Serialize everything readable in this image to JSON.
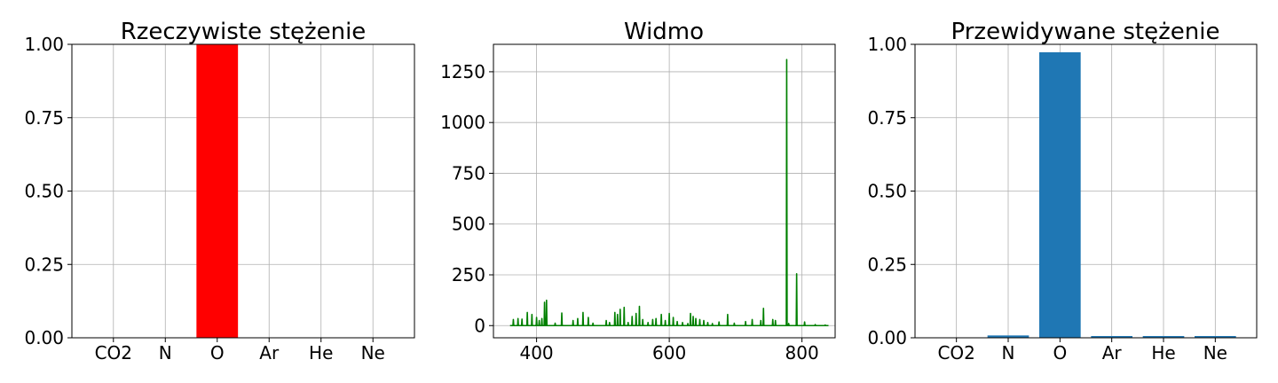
{
  "chart_data": [
    {
      "type": "bar",
      "title": "Rzeczywiste stężenie",
      "categories": [
        "CO2",
        "N",
        "O",
        "Ar",
        "He",
        "Ne"
      ],
      "values": [
        0,
        0,
        1.0,
        0,
        0,
        0
      ],
      "color": "#ff0000",
      "ylim": [
        0,
        1.0
      ],
      "yticks": [
        "0.00",
        "0.25",
        "0.50",
        "0.75",
        "1.00"
      ],
      "grid": true
    },
    {
      "type": "line",
      "title": "Widmo",
      "color": "#008000",
      "xlim": [
        335,
        850
      ],
      "ylim": [
        -60,
        1385
      ],
      "xticks": [
        "400",
        "600",
        "800"
      ],
      "yticks": [
        "0",
        "250",
        "500",
        "750",
        "1000",
        "1250"
      ],
      "grid": true,
      "peaks": [
        [
          365,
          30
        ],
        [
          372,
          35
        ],
        [
          378,
          32
        ],
        [
          386,
          65
        ],
        [
          393,
          55
        ],
        [
          400,
          40
        ],
        [
          404,
          25
        ],
        [
          408,
          35
        ],
        [
          412,
          115
        ],
        [
          415,
          125
        ],
        [
          428,
          12
        ],
        [
          438,
          62
        ],
        [
          455,
          25
        ],
        [
          462,
          35
        ],
        [
          470,
          65
        ],
        [
          478,
          40
        ],
        [
          485,
          12
        ],
        [
          505,
          25
        ],
        [
          510,
          15
        ],
        [
          518,
          65
        ],
        [
          522,
          55
        ],
        [
          526,
          80
        ],
        [
          532,
          90
        ],
        [
          538,
          15
        ],
        [
          544,
          45
        ],
        [
          550,
          60
        ],
        [
          555,
          95
        ],
        [
          560,
          30
        ],
        [
          568,
          15
        ],
        [
          575,
          30
        ],
        [
          580,
          35
        ],
        [
          588,
          55
        ],
        [
          594,
          25
        ],
        [
          600,
          60
        ],
        [
          606,
          40
        ],
        [
          612,
          20
        ],
        [
          620,
          15
        ],
        [
          628,
          10
        ],
        [
          632,
          60
        ],
        [
          636,
          45
        ],
        [
          640,
          35
        ],
        [
          646,
          30
        ],
        [
          652,
          25
        ],
        [
          658,
          15
        ],
        [
          665,
          10
        ],
        [
          675,
          18
        ],
        [
          688,
          55
        ],
        [
          698,
          12
        ],
        [
          715,
          20
        ],
        [
          725,
          30
        ],
        [
          738,
          25
        ],
        [
          742,
          85
        ],
        [
          756,
          30
        ],
        [
          760,
          25
        ],
        [
          777,
          1310
        ],
        [
          780,
          10
        ],
        [
          792,
          255
        ],
        [
          804,
          18
        ],
        [
          820,
          5
        ],
        [
          835,
          3
        ]
      ]
    },
    {
      "type": "bar",
      "title": "Przewidywane stężenie",
      "categories": [
        "CO2",
        "N",
        "O",
        "Ar",
        "He",
        "Ne"
      ],
      "values": [
        0.001,
        0.008,
        0.973,
        0.006,
        0.006,
        0.006
      ],
      "color": "#1f77b4",
      "ylim": [
        0,
        1.0
      ],
      "yticks": [
        "0.00",
        "0.25",
        "0.50",
        "0.75",
        "1.00"
      ],
      "grid": true
    }
  ]
}
